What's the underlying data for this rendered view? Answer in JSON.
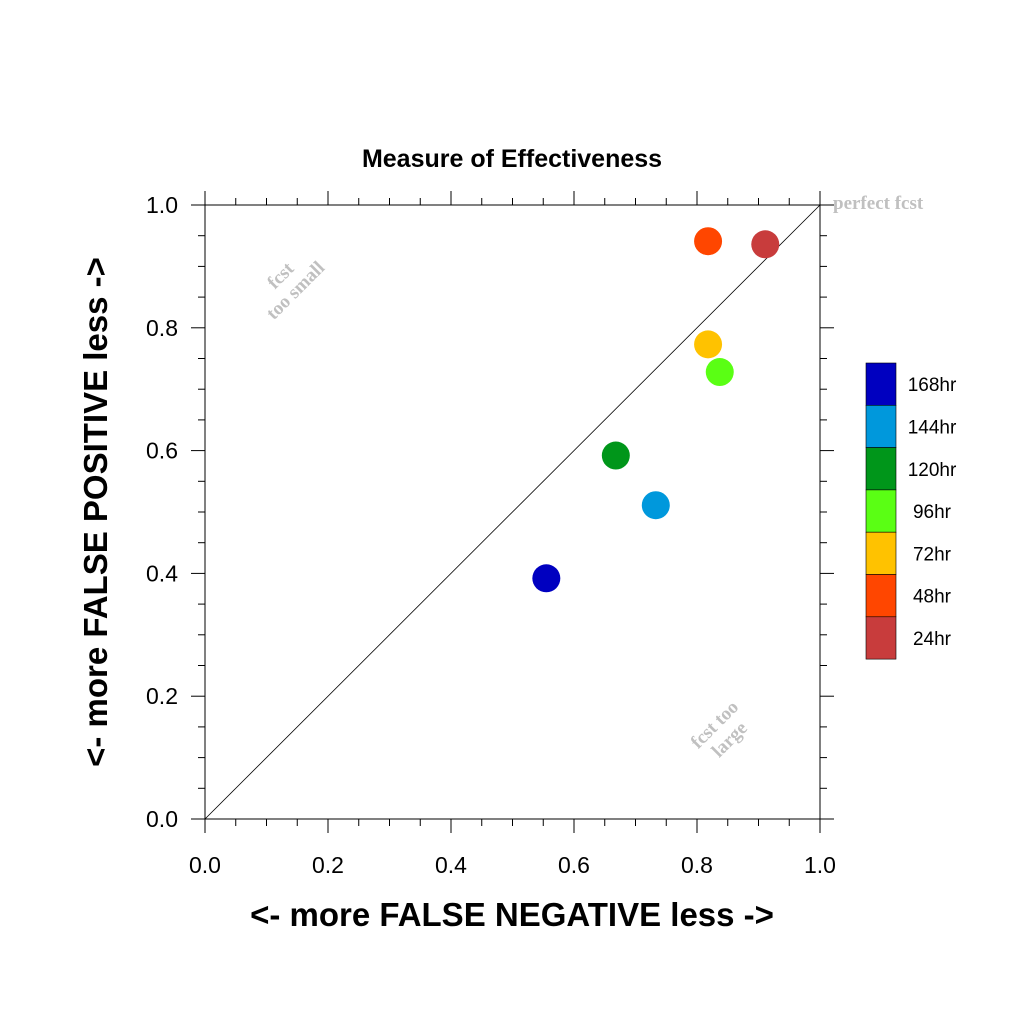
{
  "chart_data": {
    "type": "scatter",
    "title": "Measure of Effectiveness",
    "xlabel": "<- more   FALSE NEGATIVE   less ->",
    "ylabel": "<- more   FALSE POSITIVE   less ->",
    "xlim": [
      0.0,
      1.0
    ],
    "ylim": [
      0.0,
      1.0
    ],
    "xticks": [
      "0.0",
      "0.2",
      "0.4",
      "0.6",
      "0.8",
      "1.0"
    ],
    "yticks": [
      "0.0",
      "0.2",
      "0.4",
      "0.6",
      "0.8",
      "1.0"
    ],
    "grid": false,
    "reference_line": {
      "from": [
        0,
        0
      ],
      "to": [
        1,
        1
      ]
    },
    "annotations": [
      {
        "id": "perfect",
        "lines": [
          "perfect fcst"
        ]
      },
      {
        "id": "small",
        "lines": [
          "fcst",
          "too small"
        ]
      },
      {
        "id": "large",
        "lines": [
          "fcst too",
          "large"
        ]
      }
    ],
    "legend_position": "right",
    "series": [
      {
        "name": "168hr",
        "color": "#0000c0",
        "x": 0.555,
        "y": 0.392
      },
      {
        "name": "144hr",
        "color": "#0098dc",
        "x": 0.733,
        "y": 0.511
      },
      {
        "name": "120hr",
        "color": "#00961a",
        "x": 0.668,
        "y": 0.592
      },
      {
        "name": "96hr",
        "color": "#5aff14",
        "x": 0.837,
        "y": 0.728
      },
      {
        "name": "72hr",
        "color": "#ffc200",
        "x": 0.818,
        "y": 0.773
      },
      {
        "name": "48hr",
        "color": "#ff4600",
        "x": 0.818,
        "y": 0.941
      },
      {
        "name": "24hr",
        "color": "#c83c3c",
        "x": 0.911,
        "y": 0.936
      }
    ]
  }
}
